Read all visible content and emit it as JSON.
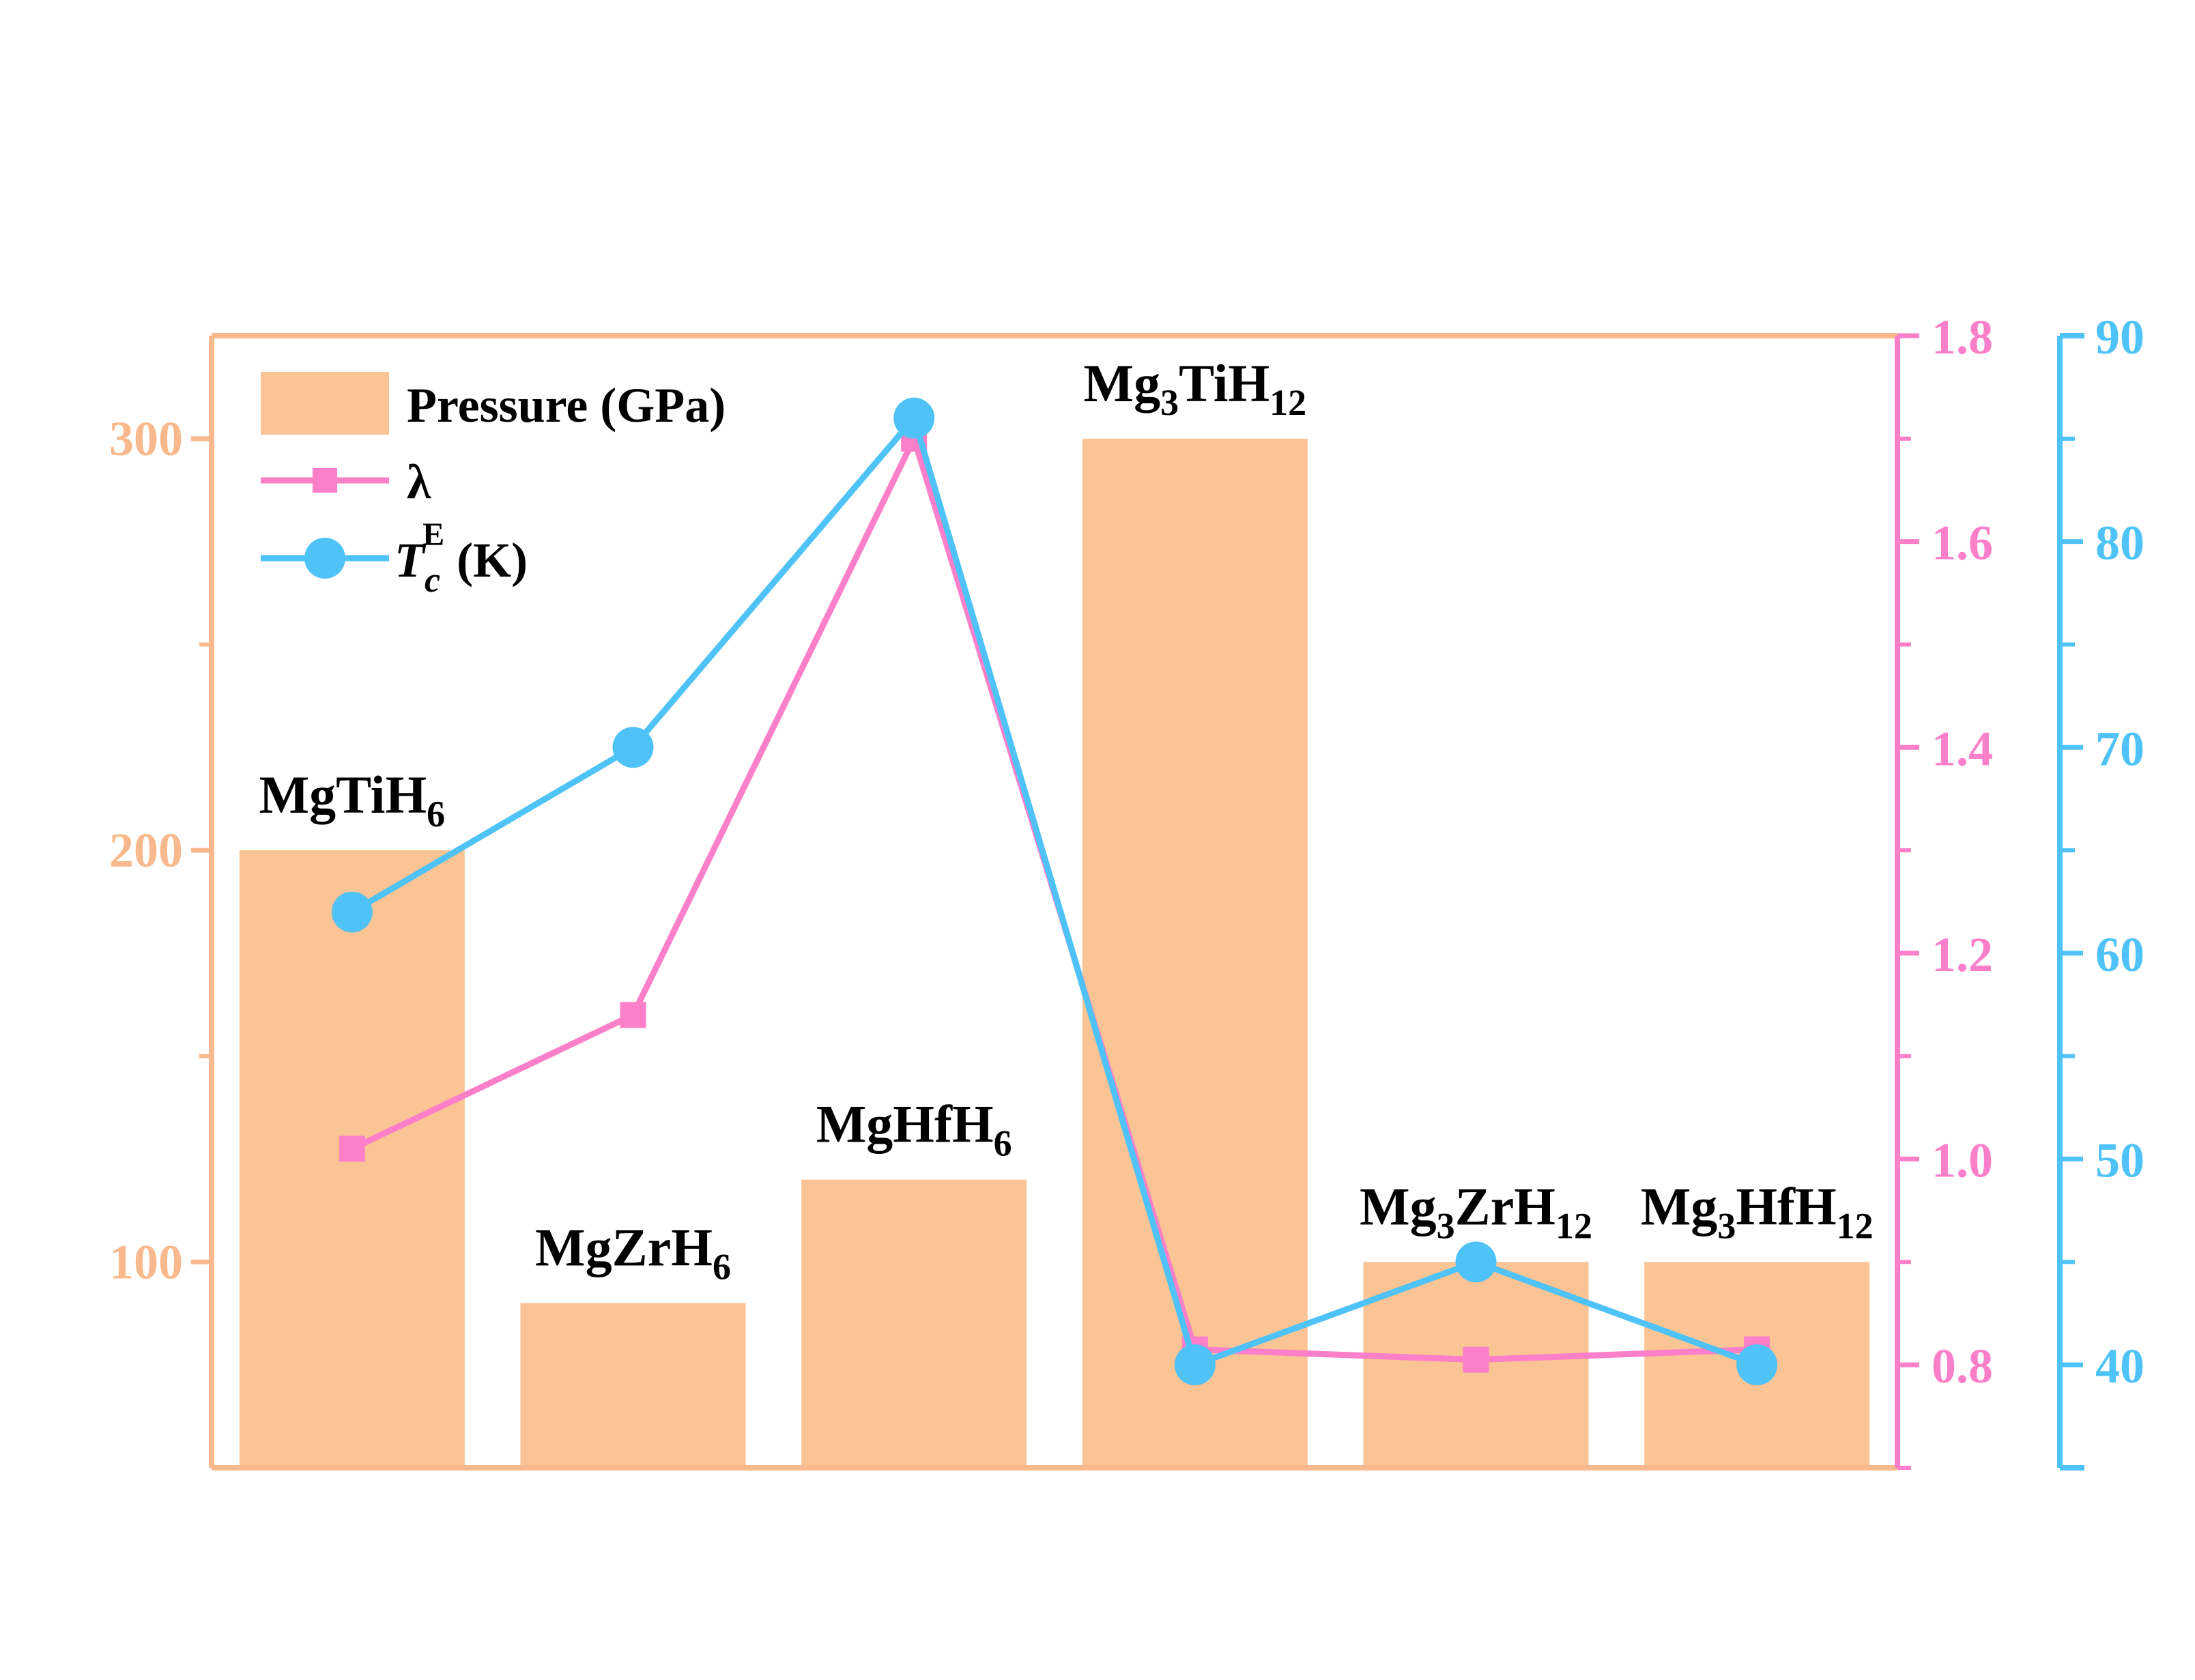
{
  "colors": {
    "pressure": "#fbc494",
    "pressure_axis": "#f9b98c",
    "lambda": "#fb7fc9",
    "tc": "#4fc3f7"
  },
  "legend": {
    "pressure": "Pressure (GPa)",
    "lambda": "λ",
    "tc_symbol": "T",
    "tc_sub": "c",
    "tc_sup": "E",
    "tc_unit": " (K)"
  },
  "chart_data": {
    "type": "bar",
    "categories": [
      {
        "base": "MgTiH",
        "sub": "6"
      },
      {
        "base": "MgZrH",
        "sub": "6"
      },
      {
        "base": "MgHfH",
        "sub": "6"
      },
      {
        "base": "Mg",
        "sub": "3",
        "base2": "TiH",
        "sub2": "12"
      },
      {
        "base": "Mg",
        "sub": "3",
        "base2": "ZrH",
        "sub2": "12"
      },
      {
        "base": "Mg",
        "sub": "3",
        "base2": "HfH",
        "sub2": "12"
      }
    ],
    "series": [
      {
        "name": "Pressure (GPa)",
        "type": "bar",
        "axis": "left",
        "values": [
          200,
          90,
          120,
          300,
          100,
          100
        ]
      },
      {
        "name": "λ",
        "type": "line",
        "marker": "square",
        "axis": "right1",
        "values": [
          1.01,
          1.14,
          1.7,
          0.815,
          0.805,
          0.815
        ]
      },
      {
        "name": "Tc E (K)",
        "type": "line",
        "marker": "circle",
        "axis": "right2",
        "values": [
          62,
          70,
          86,
          40,
          45,
          40
        ]
      }
    ],
    "axes": {
      "left": {
        "range": [
          50,
          325
        ],
        "ticks": [
          100,
          200,
          300
        ],
        "minor": [
          150,
          250
        ]
      },
      "right1": {
        "range": [
          0.7,
          1.8
        ],
        "ticks": [
          0.8,
          1.0,
          1.2,
          1.4,
          1.6,
          1.8
        ],
        "tick_labels": [
          "0.8",
          "1.0",
          "1.2",
          "1.4",
          "1.6",
          "1.8"
        ]
      },
      "right2": {
        "range": [
          35,
          90
        ],
        "ticks": [
          40,
          50,
          60,
          70,
          80,
          90
        ]
      }
    },
    "legend_position": "top-left",
    "grid": false
  }
}
